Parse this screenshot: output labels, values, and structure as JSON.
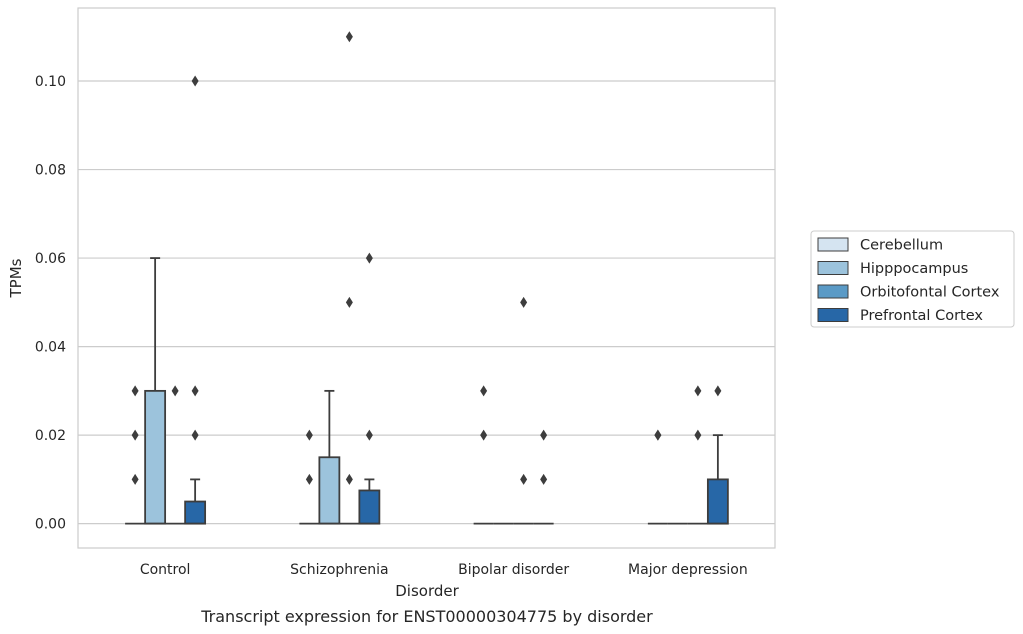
{
  "chart_data": {
    "type": "box",
    "xlabel": "Disorder",
    "ylabel": "TPMs",
    "caption": "Transcript expression for ENST00000304775 by disorder",
    "ylim": [
      -0.0055,
      0.1165
    ],
    "yticks": [
      0.0,
      0.02,
      0.04,
      0.06,
      0.08,
      0.1
    ],
    "ytick_labels": [
      "0.00",
      "0.02",
      "0.04",
      "0.06",
      "0.08",
      "0.10"
    ],
    "grid": "horizontal",
    "legend_position": "right",
    "categories": [
      "Control",
      "Schizophrenia",
      "Bipolar disorder",
      "Major depression"
    ],
    "series": [
      {
        "name": "Cerebellum",
        "color": "#d5e4f1",
        "boxes": [
          {
            "whislo": 0,
            "q1": 0,
            "med": 0,
            "q3": 0,
            "whishi": 0,
            "fliers": [
              0.01,
              0.02,
              0.03
            ]
          },
          {
            "whislo": 0,
            "q1": 0,
            "med": 0,
            "q3": 0,
            "whishi": 0,
            "fliers": [
              0.01,
              0.02
            ]
          },
          {
            "whislo": 0,
            "q1": 0,
            "med": 0,
            "q3": 0,
            "whishi": 0,
            "fliers": [
              0.02,
              0.03
            ]
          },
          {
            "whislo": 0,
            "q1": 0,
            "med": 0,
            "q3": 0,
            "whishi": 0,
            "fliers": [
              0.02,
              0.02
            ]
          }
        ]
      },
      {
        "name": "Hipppocampus",
        "color": "#9cc3dc",
        "boxes": [
          {
            "whislo": 0,
            "q1": 0,
            "med": 0,
            "q3": 0.03,
            "whishi": 0.06,
            "fliers": []
          },
          {
            "whislo": 0,
            "q1": 0,
            "med": 0,
            "q3": 0.015,
            "whishi": 0.03,
            "fliers": []
          },
          {
            "whislo": 0,
            "q1": 0,
            "med": 0,
            "q3": 0,
            "whishi": 0,
            "fliers": []
          },
          {
            "whislo": 0,
            "q1": 0,
            "med": 0,
            "q3": 0,
            "whishi": 0,
            "fliers": []
          }
        ]
      },
      {
        "name": "Orbitofontal Cortex",
        "color": "#5a9ac6",
        "boxes": [
          {
            "whislo": 0,
            "q1": 0,
            "med": 0,
            "q3": 0,
            "whishi": 0,
            "fliers": [
              0.03
            ]
          },
          {
            "whislo": 0,
            "q1": 0,
            "med": 0,
            "q3": 0,
            "whishi": 0,
            "fliers": [
              0.01,
              0.05,
              0.11
            ]
          },
          {
            "whislo": 0,
            "q1": 0,
            "med": 0,
            "q3": 0,
            "whishi": 0,
            "fliers": [
              0.01,
              0.05
            ]
          },
          {
            "whislo": 0,
            "q1": 0,
            "med": 0,
            "q3": 0,
            "whishi": 0,
            "fliers": [
              0.02,
              0.03
            ]
          }
        ]
      },
      {
        "name": "Prefrontal Cortex",
        "color": "#2767a7",
        "boxes": [
          {
            "whislo": 0,
            "q1": 0,
            "med": 0,
            "q3": 0.005,
            "whishi": 0.01,
            "fliers": [
              0.02,
              0.03,
              0.1
            ]
          },
          {
            "whislo": 0,
            "q1": 0,
            "med": 0,
            "q3": 0.0075,
            "whishi": 0.01,
            "fliers": [
              0.02,
              0.06
            ]
          },
          {
            "whislo": 0,
            "q1": 0,
            "med": 0,
            "q3": 0,
            "whishi": 0,
            "fliers": [
              0.01,
              0.02
            ]
          },
          {
            "whislo": 0,
            "q1": 0,
            "med": 0,
            "q3": 0.01,
            "whishi": 0.02,
            "fliers": [
              0.03
            ]
          }
        ]
      }
    ]
  }
}
